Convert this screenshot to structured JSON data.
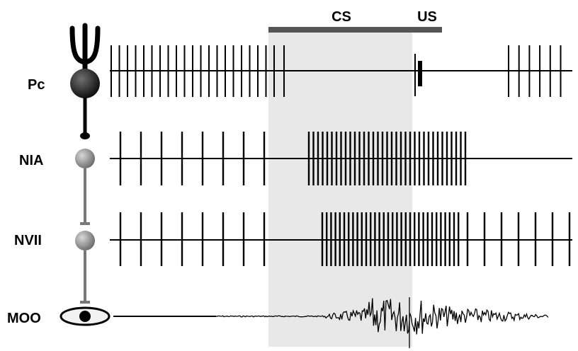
{
  "stimuli": {
    "cs_label": "CS",
    "us_label": "US"
  },
  "neurons": [
    {
      "id": "pc",
      "label": "Pc"
    },
    {
      "id": "nia",
      "label": "NIA"
    },
    {
      "id": "nvii",
      "label": "NVII"
    },
    {
      "id": "moo",
      "label": "MOO"
    }
  ],
  "colors": {
    "background": "#ffffff",
    "cs_window": "#e8e8e8",
    "stimulus_bar": "#555555",
    "trace": "#000000",
    "connector": "#777777"
  },
  "icons": {
    "pc_dendrite": "purkinje-dendrite-icon",
    "eye": "eye-icon"
  }
}
